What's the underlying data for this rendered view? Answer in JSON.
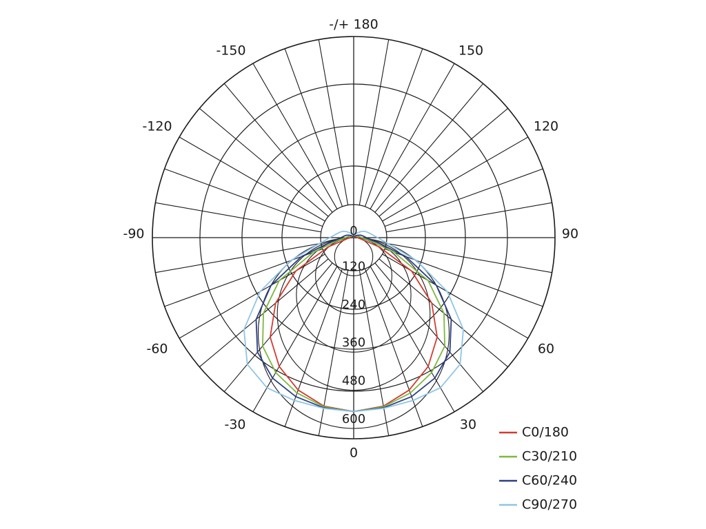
{
  "chart_data": {
    "type": "polar",
    "title": "",
    "angle_labels": [
      {
        "angle": 180,
        "text": "-/+ 180"
      },
      {
        "angle": 150,
        "text": "150"
      },
      {
        "angle": -150,
        "text": "-150"
      },
      {
        "angle": 120,
        "text": "120"
      },
      {
        "angle": -120,
        "text": "-120"
      },
      {
        "angle": 90,
        "text": "90"
      },
      {
        "angle": -90,
        "text": "-90"
      },
      {
        "angle": 60,
        "text": "60"
      },
      {
        "angle": -60,
        "text": "-60"
      },
      {
        "angle": 30,
        "text": "30"
      },
      {
        "angle": -30,
        "text": "-30"
      },
      {
        "angle": 0,
        "text": "0"
      }
    ],
    "radial_ticks": [
      {
        "value": 0,
        "text": "0"
      },
      {
        "value": 120,
        "text": "120"
      },
      {
        "value": 240,
        "text": "240"
      },
      {
        "value": 360,
        "text": "360"
      },
      {
        "value": 480,
        "text": "480"
      },
      {
        "value": 600,
        "text": "600"
      }
    ],
    "radial_range": [
      0,
      600
    ],
    "angle_grid_step_deg": 10,
    "minor_ring_step": 60,
    "legend_position": "bottom-right",
    "angles_deg": [
      0,
      10,
      20,
      30,
      40,
      50,
      60,
      70,
      80,
      90,
      100,
      110,
      120,
      130,
      140,
      150,
      160,
      170,
      180
    ],
    "series": [
      {
        "name": "C0/180",
        "color": "#d23b2f",
        "values_pos": [
          547,
          538,
          510,
          468,
          408,
          320,
          210,
          85,
          22,
          12,
          8,
          6,
          5,
          5,
          5,
          5,
          5,
          5,
          5
        ],
        "values_neg": [
          547,
          538,
          510,
          468,
          408,
          320,
          210,
          85,
          22,
          12,
          8,
          6,
          5,
          5,
          5,
          5,
          5,
          5,
          5
        ]
      },
      {
        "name": "C30/210",
        "color": "#7cb83d",
        "values_pos": [
          547,
          540,
          520,
          490,
          445,
          370,
          270,
          135,
          50,
          25,
          18,
          14,
          10,
          7,
          5,
          4,
          3,
          2,
          2
        ],
        "values_neg": [
          547,
          540,
          520,
          490,
          445,
          370,
          270,
          135,
          50,
          25,
          18,
          14,
          10,
          7,
          5,
          4,
          3,
          2,
          2
        ]
      },
      {
        "name": "C60/240",
        "color": "#2b3f86",
        "values_pos": [
          547,
          543,
          532,
          510,
          470,
          400,
          300,
          175,
          70,
          40,
          30,
          23,
          15,
          10,
          7,
          5,
          4,
          4,
          4
        ],
        "values_neg": [
          547,
          543,
          532,
          510,
          470,
          400,
          300,
          175,
          70,
          40,
          30,
          23,
          15,
          10,
          7,
          5,
          4,
          4,
          4
        ]
      },
      {
        "name": "C90/270",
        "color": "#8ec5e6",
        "values_pos": [
          547,
          545,
          545,
          545,
          520,
          450,
          340,
          210,
          110,
          75,
          58,
          48,
          40,
          30,
          20,
          14,
          12,
          12,
          12
        ],
        "values_neg": [
          547,
          545,
          545,
          545,
          520,
          450,
          340,
          210,
          110,
          75,
          58,
          48,
          40,
          30,
          20,
          14,
          12,
          12,
          12
        ]
      }
    ]
  }
}
